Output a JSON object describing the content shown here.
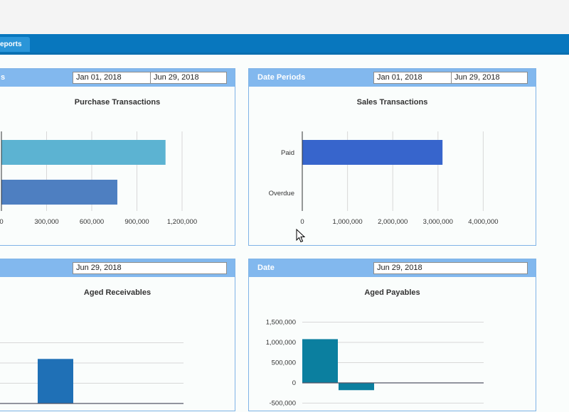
{
  "nav": {
    "tab_label": "eports"
  },
  "panels": {
    "purchase": {
      "header_label": "s",
      "date_from": "Jan 01, 2018",
      "date_to": "Jun 29, 2018",
      "chart_title": "Purchase Transactions"
    },
    "sales": {
      "header_label": "Date Periods",
      "date_from": "Jan 01, 2018",
      "date_to": "Jun 29, 2018",
      "chart_title": "Sales Transactions"
    },
    "receivables": {
      "date": "Jun 29, 2018",
      "chart_title": "Aged Receivables"
    },
    "payables": {
      "header_label": "Date",
      "date": "Jun 29, 2018",
      "chart_title": "Aged Payables"
    }
  },
  "colors": {
    "header": "#82b8ee",
    "nav": "#0877be",
    "purchase_bar_1": "#5cb3d2",
    "purchase_bar_2": "#4e7fc1",
    "sales_paid": "#3765cc",
    "receivables_bar": "#1f70b6",
    "payables_bar": "#0b7f9f"
  },
  "chart_data": [
    {
      "type": "bar",
      "orientation": "horizontal",
      "title": "Purchase Transactions",
      "categories": [
        "",
        ""
      ],
      "values": [
        1090000,
        770000
      ],
      "xlim": [
        0,
        1300000
      ],
      "xticks": [
        "0",
        "300,000",
        "600,000",
        "900,000",
        "1,200,000"
      ],
      "grid": true
    },
    {
      "type": "bar",
      "orientation": "horizontal",
      "title": "Sales Transactions",
      "categories": [
        "Paid",
        "Overdue"
      ],
      "values": [
        3100000,
        0
      ],
      "xlim": [
        0,
        4400000
      ],
      "xticks": [
        "0",
        "1,000,000",
        "2,000,000",
        "3,000,000",
        "4,000,000"
      ],
      "grid": true
    },
    {
      "type": "bar",
      "title": "Aged Receivables",
      "values": [
        1100000
      ],
      "grid": true
    },
    {
      "type": "bar",
      "title": "Aged Payables",
      "values": [
        1080000,
        -180000
      ],
      "ylim": [
        -500000,
        1500000
      ],
      "yticks": [
        "1,500,000",
        "1,000,000",
        "500,000",
        "0",
        "-500,000"
      ],
      "grid": true
    }
  ]
}
